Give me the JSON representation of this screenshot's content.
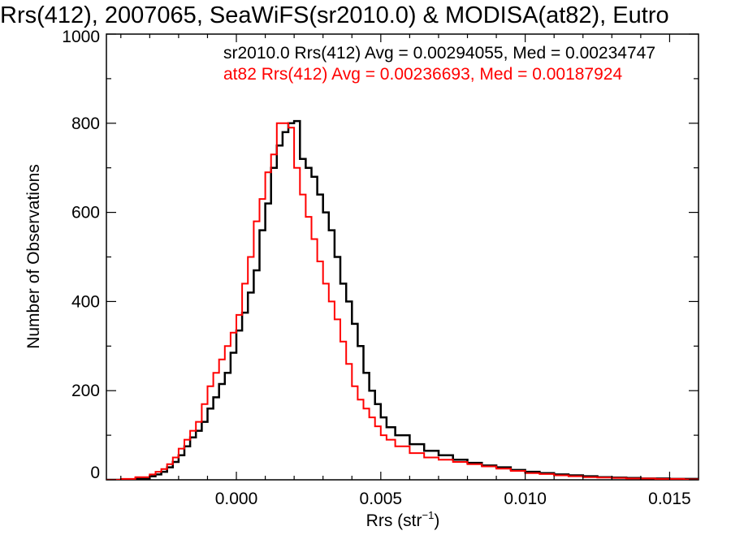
{
  "chart_data": {
    "type": "line",
    "title": "Rrs(412), 2007065, SeaWiFS(sr2010.0) & MODISA(at82), Eutro",
    "xlabel": "Rrs (str",
    "xlabel_superscript": "−1",
    "xlabel_close": ")",
    "ylabel": "Number of Observations",
    "xlim": [
      -0.0045,
      0.016
    ],
    "ylim": [
      0,
      1000
    ],
    "x_ticks": [
      0.0,
      0.005,
      0.01,
      0.015
    ],
    "x_tick_labels": [
      "0.000",
      "0.005",
      "0.010",
      "0.015"
    ],
    "y_ticks": [
      0,
      200,
      400,
      600,
      800,
      1000
    ],
    "y_tick_labels": [
      "0",
      "200",
      "400",
      "600",
      "800",
      "1000"
    ],
    "grid": false,
    "legend_position": "top-right",
    "series": [
      {
        "name": "sr2010.0",
        "stats_label": "sr2010.0 Rrs(412) Avg = 0.00294055, Med = 0.00234747",
        "color": "#000000",
        "x": [
          -0.0045,
          -0.004,
          -0.0035,
          -0.003,
          -0.0028,
          -0.0026,
          -0.0024,
          -0.0022,
          -0.002,
          -0.0018,
          -0.0016,
          -0.0014,
          -0.0012,
          -0.001,
          -0.0008,
          -0.0006,
          -0.0004,
          -0.0002,
          0.0,
          0.0002,
          0.0004,
          0.0006,
          0.0008,
          0.001,
          0.0012,
          0.0014,
          0.0016,
          0.0018,
          0.002,
          0.0022,
          0.0024,
          0.0026,
          0.0028,
          0.003,
          0.0032,
          0.0034,
          0.0036,
          0.0038,
          0.004,
          0.0042,
          0.0044,
          0.0046,
          0.0048,
          0.005,
          0.0052,
          0.0055,
          0.006,
          0.0065,
          0.007,
          0.0075,
          0.008,
          0.0085,
          0.009,
          0.0095,
          0.01,
          0.0105,
          0.011,
          0.0115,
          0.012,
          0.0125,
          0.013,
          0.0135,
          0.014,
          0.0145,
          0.015,
          0.0155,
          0.016
        ],
        "y": [
          0,
          0,
          2,
          8,
          12,
          18,
          28,
          40,
          55,
          75,
          95,
          110,
          130,
          160,
          185,
          215,
          240,
          285,
          335,
          375,
          420,
          470,
          560,
          620,
          700,
          750,
          780,
          800,
          805,
          720,
          700,
          680,
          640,
          600,
          560,
          500,
          440,
          400,
          350,
          300,
          240,
          200,
          170,
          140,
          118,
          100,
          80,
          65,
          55,
          45,
          38,
          32,
          28,
          22,
          18,
          15,
          12,
          10,
          8,
          6,
          5,
          4,
          3,
          3,
          2,
          2,
          1
        ]
      },
      {
        "name": "at82",
        "stats_label": "at82 Rrs(412) Avg = 0.00236693, Med = 0.00187924",
        "color": "#ff0000",
        "x": [
          -0.0045,
          -0.004,
          -0.0035,
          -0.003,
          -0.0028,
          -0.0026,
          -0.0024,
          -0.0022,
          -0.002,
          -0.0018,
          -0.0016,
          -0.0014,
          -0.0012,
          -0.001,
          -0.0008,
          -0.0006,
          -0.0004,
          -0.0002,
          0.0,
          0.0002,
          0.0004,
          0.0006,
          0.0008,
          0.001,
          0.0012,
          0.0014,
          0.0016,
          0.0018,
          0.002,
          0.0022,
          0.0024,
          0.0026,
          0.0028,
          0.003,
          0.0032,
          0.0034,
          0.0036,
          0.0038,
          0.004,
          0.0042,
          0.0044,
          0.0046,
          0.0048,
          0.005,
          0.0052,
          0.0055,
          0.006,
          0.0065,
          0.007,
          0.0075,
          0.008,
          0.0085,
          0.009,
          0.0095,
          0.01,
          0.0105,
          0.011,
          0.0115,
          0.012,
          0.0125,
          0.013,
          0.0135,
          0.014,
          0.0145,
          0.015,
          0.0155,
          0.016
        ],
        "y": [
          0,
          2,
          6,
          12,
          18,
          24,
          35,
          50,
          70,
          90,
          110,
          130,
          170,
          210,
          240,
          270,
          300,
          330,
          370,
          440,
          500,
          580,
          630,
          690,
          730,
          800,
          800,
          790,
          700,
          640,
          590,
          540,
          490,
          440,
          400,
          360,
          310,
          260,
          210,
          180,
          160,
          140,
          120,
          100,
          90,
          75,
          60,
          50,
          45,
          40,
          35,
          30,
          25,
          20,
          15,
          13,
          10,
          8,
          6,
          5,
          4,
          3,
          3,
          2,
          2,
          1,
          1
        ]
      }
    ]
  }
}
